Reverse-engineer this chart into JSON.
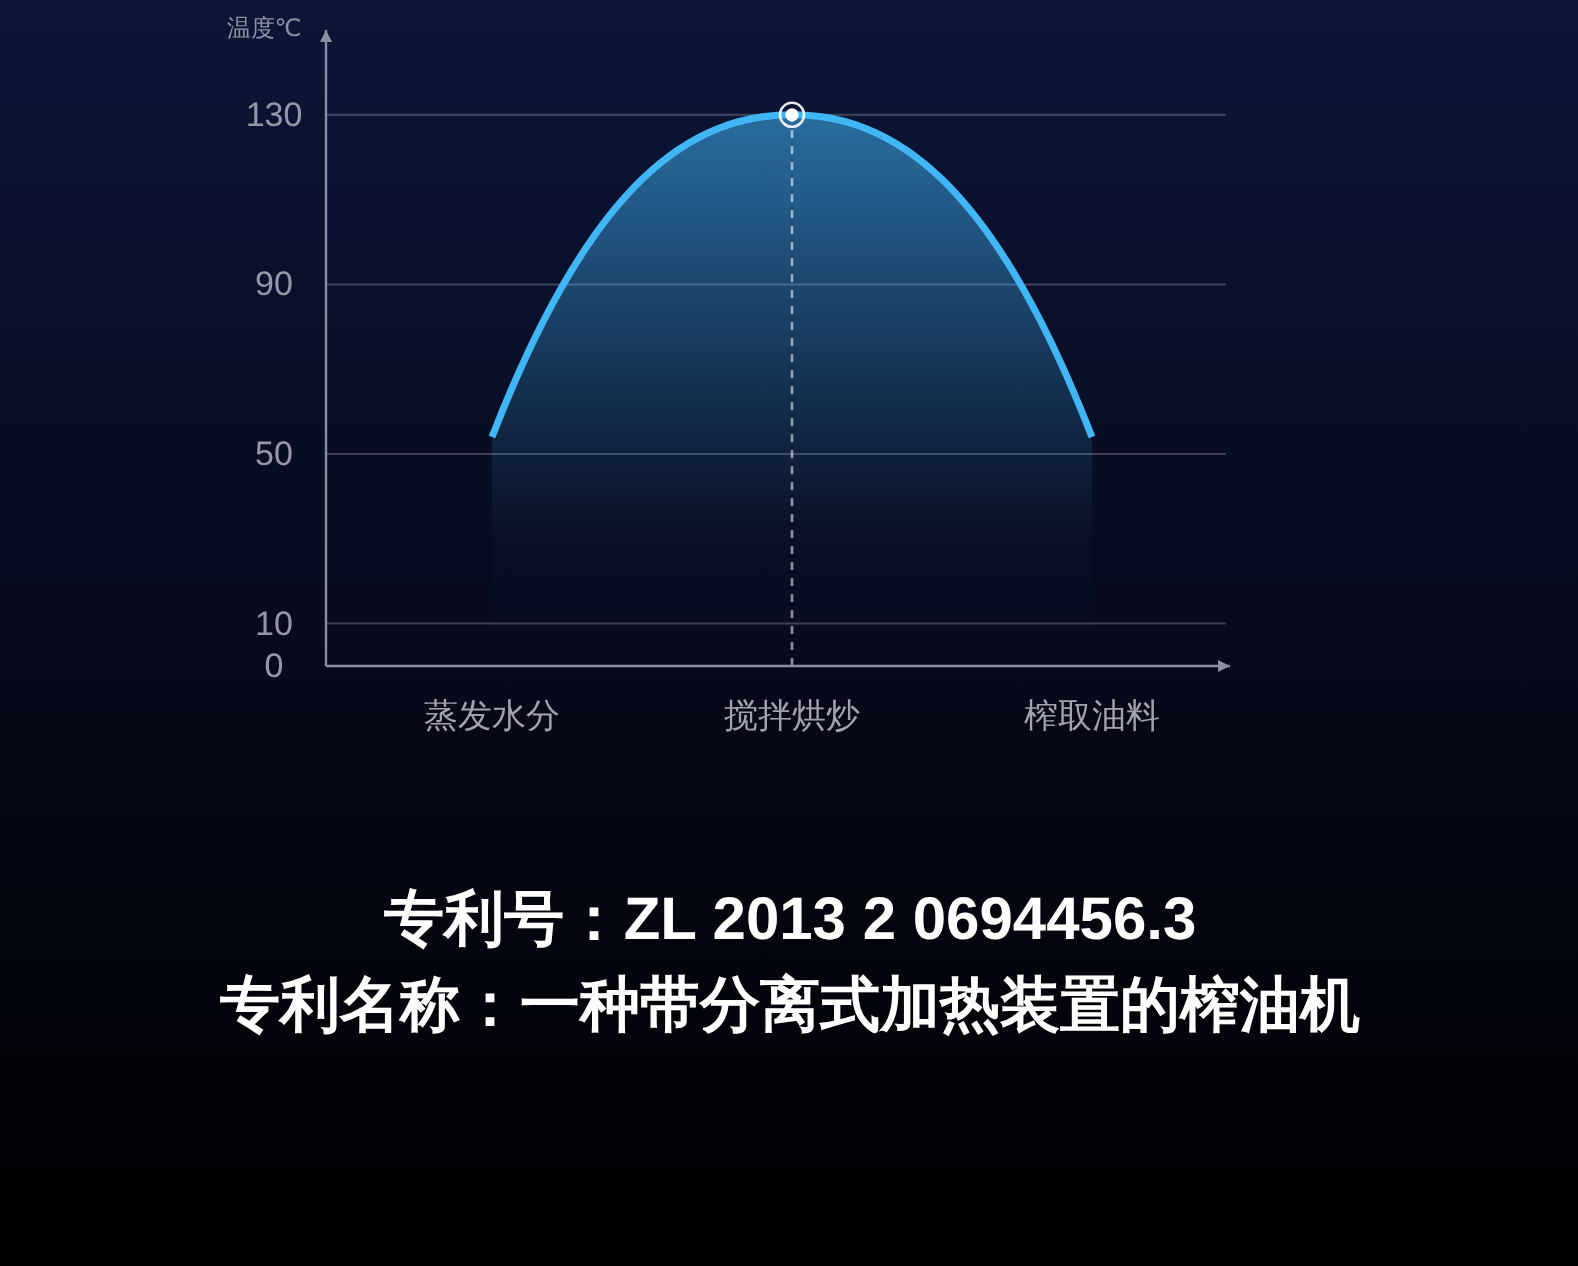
{
  "chart_data": {
    "type": "area",
    "ylabel": "温度℃",
    "categories": [
      "蒸发水分",
      "搅拌烘炒",
      "榨取油料"
    ],
    "series": [
      {
        "color": "#41b6f5",
        "values": [
          54,
          130,
          54
        ]
      },
      {
        "type": "lollipop",
        "x": [
          "搅拌烘炒"
        ],
        "color": "#ffffff",
        "values": [
          130
        ],
        "marker": "circle",
        "line_style": "dashed"
      }
    ],
    "ylim": [
      0,
      150
    ],
    "yticks": [
      0,
      10,
      50,
      90,
      130
    ],
    "grid": "y",
    "annotations": [
      "专利号：ZL 2013 2 0694456.3",
      "专利名称：一种带分离式加热装置的榨油机"
    ]
  }
}
